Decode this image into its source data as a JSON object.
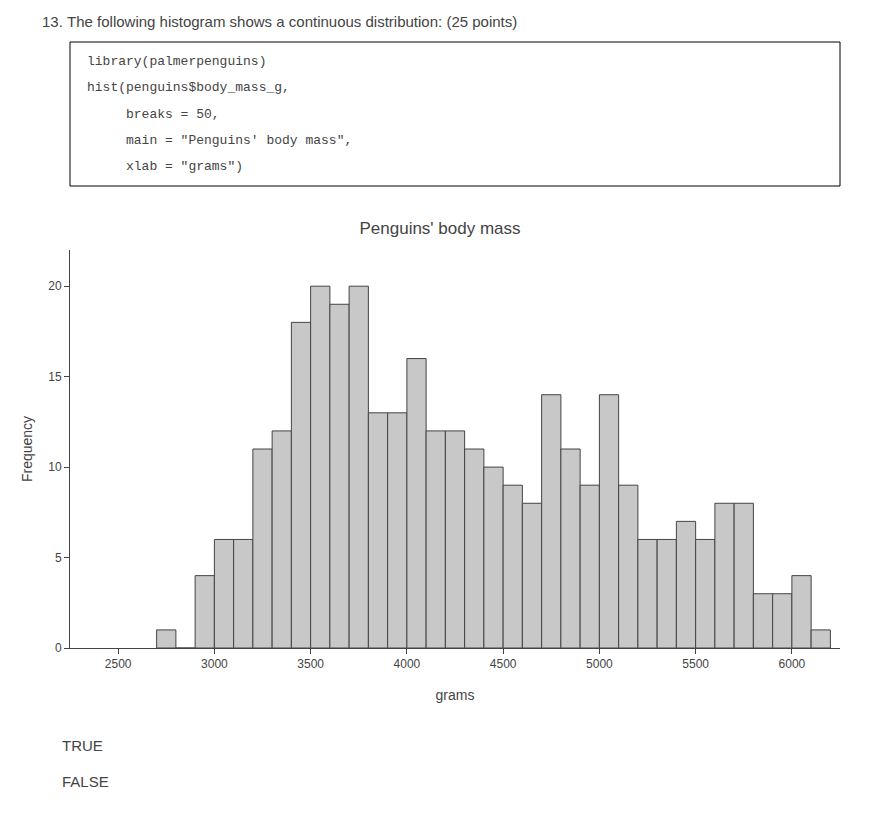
{
  "chart_data": {
    "type": "histogram",
    "title": "Penguins' body mass",
    "x_label": "grams",
    "y_label": "Frequency",
    "bins": [
      2700,
      2800,
      2900,
      3000,
      3100,
      3200,
      3300,
      3400,
      3500,
      3600,
      3700,
      3800,
      3900,
      4000,
      4100,
      4200,
      4300,
      4400,
      4500,
      4600,
      4700,
      4800,
      4900,
      5000,
      5100,
      5200,
      5300,
      5400,
      5500,
      5600,
      5700,
      5800,
      5900,
      6000,
      6100,
      6200
    ],
    "values": [
      1,
      0,
      4,
      6,
      6,
      11,
      12,
      18,
      20,
      19,
      20,
      13,
      13,
      16,
      12,
      12,
      11,
      10,
      9,
      8,
      14,
      11,
      9,
      14,
      9,
      6,
      6,
      7,
      6,
      8,
      8,
      3,
      3,
      4,
      1
    ],
    "color": "#c8c8c8",
    "xlim": [
      2250,
      6250
    ],
    "xticks": [
      2500,
      3000,
      3500,
      4000,
      4500,
      5000,
      5500,
      6000
    ],
    "ylim": [
      0,
      22
    ],
    "yticks": [
      0,
      5,
      10,
      15,
      20
    ],
    "grid": false,
    "header": [
      "13. The following histogram shows a continuous distribution: (25 points)",
      "library(palmerpenguins)",
      "hist(penguins$body_mass_g,",
      "     breaks = 50,",
      "     main = \"Penguins' body mass\",",
      "     xlab = \"grams\")"
    ],
    "options": [
      "TRUE",
      "FALSE"
    ]
  }
}
